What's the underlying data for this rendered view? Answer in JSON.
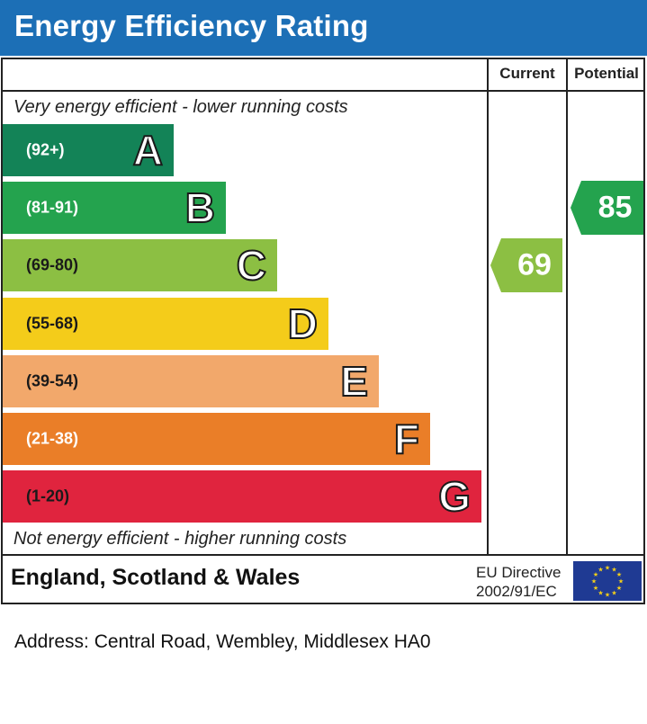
{
  "title": "Energy Efficiency Rating",
  "header": {
    "current_label": "Current",
    "potential_label": "Potential"
  },
  "top_caption": "Very energy efficient - lower running costs",
  "bottom_caption": "Not energy efficient - higher running costs",
  "colors": {
    "title_bar": "#1c6fb6",
    "A": "#138357",
    "B": "#24a34e",
    "C": "#8cbf43",
    "D": "#f4cc1a",
    "E": "#f2a86b",
    "F": "#ea7e28",
    "G": "#e0243e"
  },
  "chart_data": {
    "type": "bar",
    "categories": [
      "A",
      "B",
      "C",
      "D",
      "E",
      "F",
      "G"
    ],
    "ranges": [
      "(92+)",
      "(81-91)",
      "(69-80)",
      "(55-68)",
      "(39-54)",
      "(21-38)",
      "(1-20)"
    ],
    "range_min": [
      92,
      81,
      69,
      55,
      39,
      21,
      1
    ],
    "range_max": [
      100,
      91,
      80,
      68,
      54,
      38,
      20
    ],
    "current": {
      "value": 69,
      "band": "C"
    },
    "potential": {
      "value": 85,
      "band": "B"
    }
  },
  "footer": {
    "region": "England, Scotland & Wales",
    "directive_line1": "EU Directive",
    "directive_line2": "2002/91/EC",
    "flag_icon": "eu-flag-icon"
  },
  "address": "Address: Central Road, Wembley, Middlesex HA0"
}
